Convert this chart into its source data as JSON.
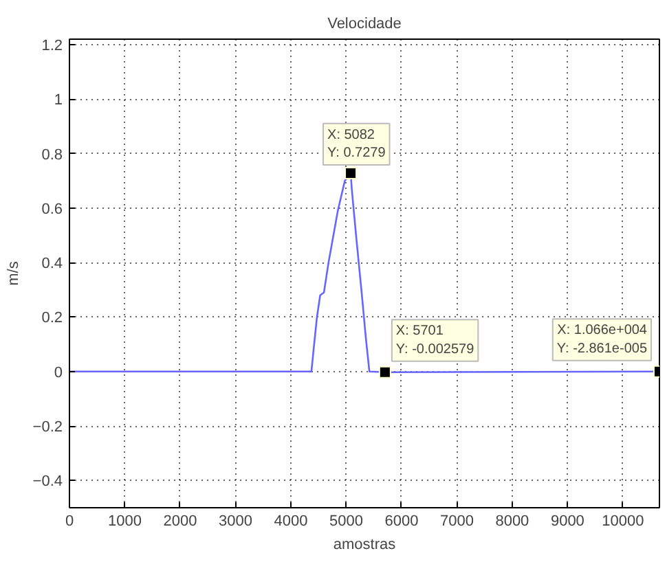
{
  "chart_data": {
    "type": "line",
    "title": "Velocidade",
    "xlabel": "amostras",
    "ylabel": "m/s",
    "xlim": [
      0,
      10660
    ],
    "ylim": [
      -0.5,
      1.22
    ],
    "xticks": [
      0,
      1000,
      2000,
      3000,
      4000,
      5000,
      6000,
      7000,
      8000,
      9000,
      10000
    ],
    "yticks": [
      -0.4,
      -0.2,
      0,
      0.2,
      0.4,
      0.6,
      0.8,
      1,
      1.2
    ],
    "grid": true,
    "line_style": "solid",
    "series": [
      {
        "color": "#6666ff",
        "x": [
          0,
          4372,
          4414,
          4472,
          4530,
          4598,
          4681,
          4849,
          4975,
          5082,
          5101,
          5183,
          5284,
          5352,
          5419,
          5701,
          10660
        ],
        "values": [
          0,
          0,
          0.086,
          0.2,
          0.28,
          0.29,
          0.4,
          0.59,
          0.7,
          0.7279,
          0.67,
          0.49,
          0.28,
          0.13,
          0,
          -0.002579,
          -2.861e-05
        ]
      }
    ],
    "annotations": [
      {
        "text": "X: 5082\nY: 0.7279",
        "x": 5082,
        "y": 0.7279
      },
      {
        "text": "X: 5701\nY: -0.002579",
        "x": 5701,
        "y": -0.002579
      },
      {
        "text": "X: 1.066e+004\nY: -2.861e-005",
        "x": 10660,
        "y": -2.861e-05
      }
    ]
  }
}
